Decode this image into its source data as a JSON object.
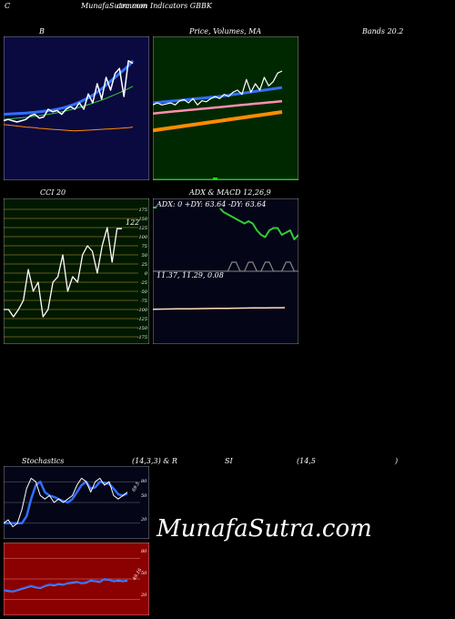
{
  "header": {
    "letter": "C",
    "site": "MunafaSutra.com",
    "subtitle": "common Indicators GBBK"
  },
  "watermark": "MunafaSutra.com",
  "colors": {
    "blue_panel": "#0a0a40",
    "green_panel": "#002800",
    "red_panel": "#8b0000",
    "white_series": "#ffffff",
    "blue_series": "#3070ff",
    "orange_series": "#ff8c00",
    "green_series": "#33cc33",
    "pink_series": "#ff8fb0"
  },
  "chart_data": [
    {
      "type": "line",
      "title": "B",
      "series": [
        {
          "values": [
            141,
            142,
            141,
            140,
            141,
            142,
            145,
            146,
            143,
            144,
            150,
            148,
            149,
            146,
            150,
            152,
            150,
            155,
            150,
            162,
            155,
            170,
            158,
            175,
            165,
            178,
            182,
            160,
            188,
            186
          ]
        },
        {
          "values": [
            142,
            142.3,
            142.6,
            143,
            143.3,
            143.6,
            144,
            144.5,
            145,
            145.5,
            146,
            146.6,
            147.2,
            148,
            148.8,
            149.6,
            150.5,
            151.5,
            152.5,
            153.6,
            154.8,
            156,
            157.2,
            158.5,
            160,
            161.5,
            163,
            164.6,
            166.2,
            168
          ]
        },
        {
          "values": [
            146,
            146.2,
            146.4,
            146.6,
            146.8,
            147,
            147.3,
            147.6,
            148,
            148.4,
            148.8,
            149.3,
            150,
            150.8,
            151.7,
            152.8,
            154,
            155.5,
            157.2,
            159,
            161,
            163.5,
            166,
            169,
            172,
            175,
            178,
            181,
            184,
            188
          ]
        },
        {
          "values": [
            138,
            137.6,
            137.2,
            136.8,
            136.4,
            136,
            135.8,
            135.5,
            135,
            134.8,
            134.5,
            134.2,
            134,
            133.8,
            133.5,
            133.2,
            133,
            133.2,
            133.4,
            133.6,
            133.8,
            134,
            134.2,
            134.4,
            134.6,
            134.8,
            135,
            135.3,
            135.6,
            136
          ]
        }
      ]
    },
    {
      "type": "line",
      "title": "Price, Volumes, MA",
      "series": [
        {
          "values": [
            112,
            113,
            112,
            112.5,
            113,
            112,
            114,
            114.5,
            113,
            115,
            112,
            114,
            113.5,
            115,
            116,
            115,
            117,
            116,
            118,
            119,
            117,
            124,
            118,
            122,
            119,
            125,
            121,
            123,
            127,
            128
          ]
        },
        {
          "values": [
            113,
            113.2,
            113.4,
            113.6,
            113.8,
            114,
            114.2,
            114.4,
            114.6,
            114.8,
            115,
            115.2,
            115.4,
            115.6,
            115.8,
            116,
            116.3,
            116.6,
            116.9,
            117.2,
            117.5,
            117.8,
            118.1,
            118.4,
            118.7,
            119,
            119.3,
            119.6,
            119.9,
            120.2
          ]
        },
        {
          "values": [
            108,
            108.2,
            108.4,
            108.6,
            108.8,
            109,
            109.2,
            109.4,
            109.6,
            109.8,
            110,
            110.2,
            110.4,
            110.6,
            110.8,
            111,
            111.2,
            111.4,
            111.6,
            111.8,
            112,
            112.2,
            112.4,
            112.6,
            112.8,
            113,
            113.2,
            113.4,
            113.6,
            113.8
          ]
        },
        {
          "values": [
            100,
            100.3,
            100.6,
            100.9,
            101.2,
            101.5,
            101.8,
            102.1,
            102.4,
            102.7,
            103,
            103.3,
            103.6,
            103.9,
            104.2,
            104.5,
            104.8,
            105.1,
            105.4,
            105.7,
            106,
            106.3,
            106.6,
            106.9,
            107.2,
            107.5,
            107.8,
            108.1,
            108.4,
            108.7
          ]
        }
      ]
    },
    {
      "type": "line",
      "title": "Bands 20.2"
    },
    {
      "type": "line",
      "title": "CCI 20",
      "ylim": [
        -175,
        175
      ],
      "ticks": [
        "175",
        "150",
        "125",
        "100",
        "75",
        "50",
        "25",
        "0",
        "-25",
        "-50",
        "-75",
        "-100",
        "-125",
        "-150",
        "-175"
      ],
      "last_value_label": "122",
      "series": [
        {
          "values": [
            -100,
            -100,
            -120,
            -100,
            -75,
            10,
            -50,
            -25,
            -120,
            -100,
            -25,
            -10,
            50,
            -50,
            -10,
            -25,
            50,
            75,
            60,
            0,
            75,
            125,
            30,
            122,
            122
          ]
        }
      ]
    },
    {
      "type": "line",
      "title": "ADX & MACD 12,26,9",
      "legend": "ADX: 0 +DY: 63.64 -DY: 63.64",
      "macd_values": "11.37, 11.29, 0.08",
      "series": [
        {
          "values": [
            100,
            100,
            100,
            100,
            100,
            100,
            100,
            100,
            100,
            100,
            100,
            100,
            100,
            100,
            100,
            100,
            100,
            90,
            85,
            80,
            75,
            70,
            65,
            70,
            65,
            50,
            40,
            35,
            50,
            55,
            55,
            40,
            45,
            50,
            30,
            40
          ]
        },
        {
          "values": [
            0,
            0,
            0,
            0,
            0,
            0,
            0,
            0,
            0,
            0,
            0,
            0,
            0,
            0,
            0,
            0,
            0,
            0,
            0,
            5,
            5,
            0,
            0,
            5,
            5,
            0,
            0,
            5,
            5,
            0,
            0,
            0,
            5,
            5,
            0,
            0
          ]
        },
        {
          "values": [
            10,
            10.1,
            10.2,
            10.3,
            10.4,
            10.5,
            10.6,
            10.7,
            10.8,
            10.9,
            11,
            11.1,
            11.2,
            11.3,
            11.4,
            11.5,
            11.6,
            11.7,
            11.8,
            11.9,
            11.9,
            12
          ]
        }
      ]
    },
    {
      "type": "line",
      "title": "Stochastics (14,3,3) & RSI (14,5)",
      "title_parts": [
        "Stochastics",
        "(14,3,3) & R",
        "SI",
        "(14,5",
        ")"
      ],
      "stoch_ticks": [
        "80",
        "50",
        "20"
      ],
      "rsi_ticks": [
        "80",
        "50",
        "20"
      ],
      "stoch_value_label": "69.5",
      "rsi_value_label": "49.16",
      "series": [
        {
          "values": [
            20,
            25,
            15,
            20,
            40,
            70,
            85,
            80,
            60,
            55,
            60,
            50,
            55,
            50,
            55,
            60,
            75,
            85,
            80,
            65,
            80,
            85,
            75,
            80,
            60,
            55,
            60,
            65
          ]
        },
        {
          "values": [
            20,
            20,
            20,
            20,
            20,
            30,
            55,
            75,
            80,
            65,
            60,
            58,
            55,
            52,
            50,
            55,
            65,
            75,
            80,
            70,
            72,
            80,
            78,
            77,
            70,
            62,
            60,
            63
          ]
        },
        {
          "values": [
            34,
            33,
            32,
            34,
            36,
            38,
            40,
            38,
            37,
            40,
            42,
            41,
            43,
            42,
            44,
            45,
            46,
            44,
            45,
            48,
            47,
            46,
            50,
            49,
            47,
            48,
            47,
            48
          ]
        }
      ]
    }
  ]
}
